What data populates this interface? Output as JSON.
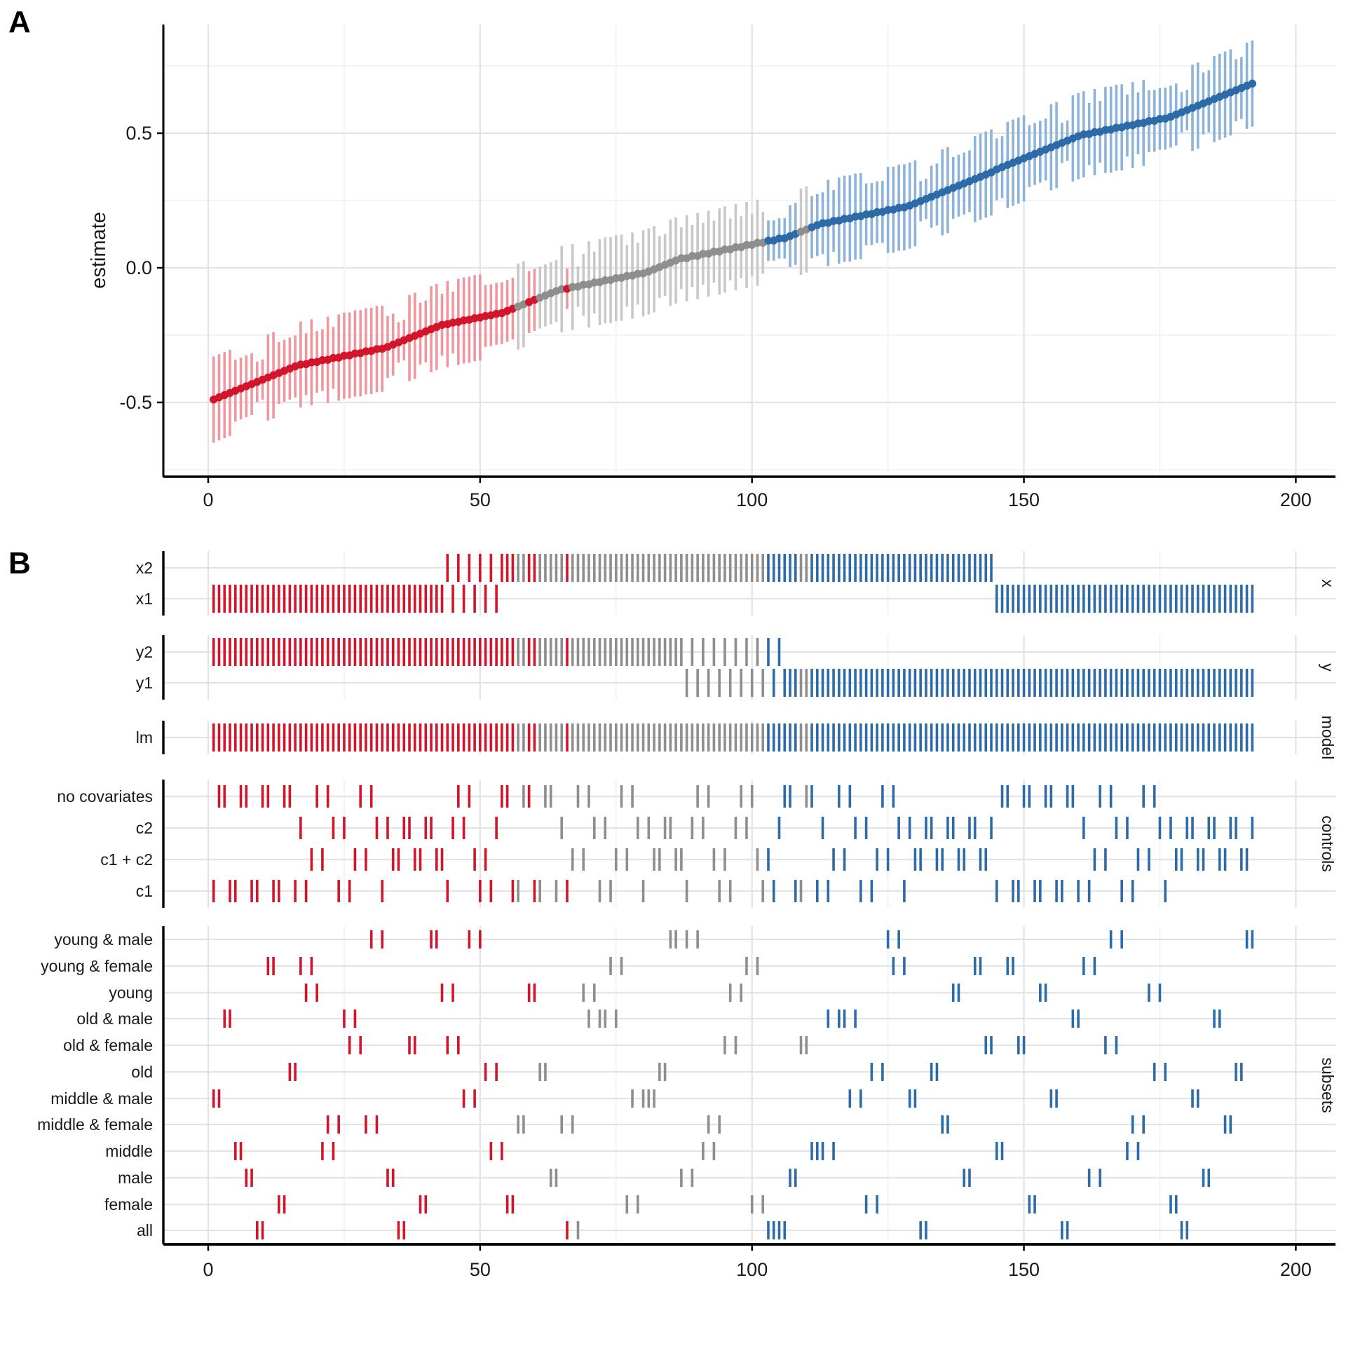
{
  "chart_data": {
    "type": "scatter",
    "subtype": "specification-curve",
    "n_specs": 192,
    "panelA": {
      "label": "A",
      "ylabel": "estimate",
      "yticks": [
        {
          "label": "0.5",
          "value": 0.5
        },
        {
          "label": "0.0",
          "value": 0.0
        },
        {
          "label": "-0.5",
          "value": -0.5
        }
      ],
      "yminor": [
        0.75,
        0.25,
        -0.25,
        -0.75
      ],
      "ylim": [
        -0.78,
        0.9
      ],
      "xticks": [
        {
          "label": "0",
          "value": 0
        },
        {
          "label": "50",
          "value": 50
        },
        {
          "label": "100",
          "value": 100
        },
        {
          "label": "150",
          "value": 150
        },
        {
          "label": "200",
          "value": 200
        }
      ],
      "xminor": [
        25,
        75,
        125,
        175
      ],
      "xlim": [
        -8,
        207
      ]
    },
    "panelB": {
      "label": "B",
      "blocks": [
        {
          "strip": "x",
          "rows": [
            "x2",
            "x1"
          ]
        },
        {
          "strip": "y",
          "rows": [
            "y2",
            "y1"
          ]
        },
        {
          "strip": "model",
          "rows": [
            "lm"
          ]
        },
        {
          "strip": "controls",
          "rows": [
            "no covariates",
            "c2",
            "c1 + c2",
            "c1"
          ]
        },
        {
          "strip": "subsets",
          "rows": [
            "young & male",
            "young & female",
            "young",
            "old & male",
            "old & female",
            "old",
            "middle & male",
            "middle & female",
            "middle",
            "male",
            "female",
            "all"
          ]
        }
      ],
      "xticks": [
        {
          "label": "0",
          "value": 0
        },
        {
          "label": "50",
          "value": 50
        },
        {
          "label": "100",
          "value": 100
        },
        {
          "label": "150",
          "value": 150
        },
        {
          "label": "200",
          "value": 200
        }
      ]
    },
    "colors": {
      "red": "#d2152b",
      "red_light": "#ef97a0",
      "gray": "#8e8e8e",
      "gray_light": "#c8c8c8",
      "blue": "#2d6ba8",
      "blue_light": "#8db3d8",
      "grid_major": "#e3e3e3",
      "grid_minor": "#f1f1f1",
      "axis": "#000000",
      "text": "#1a1a1a"
    },
    "legend_semantics": {
      "red": "significant negative estimate",
      "gray": "non-significant estimate",
      "blue": "significant positive estimate"
    },
    "ci_halfwidths": {
      "all": 0.075,
      "female": 0.115,
      "male": 0.115,
      "middle": 0.115,
      "old": 0.115,
      "young": 0.115,
      "middle & female": 0.16,
      "middle & male": 0.16,
      "old & female": 0.16,
      "old & male": 0.16,
      "young & female": 0.16,
      "young & male": 0.16
    },
    "spec_blocks": [
      {
        "x": "x1",
        "y": "y2",
        "model": "lm",
        "controls_pair": [
          "c1",
          "no covariates"
        ],
        "subset_order": [
          "middle & male",
          "old & male",
          "middle",
          "male",
          "all",
          "young & female",
          "female",
          "old",
          "young",
          "middle & female",
          "old & female",
          "young & male"
        ],
        "estimates": [
          -0.4893,
          -0.4811,
          -0.4729,
          -0.4647,
          -0.4565,
          -0.4483,
          -0.4401,
          -0.4319,
          -0.4237,
          -0.4155,
          -0.4073,
          -0.3991,
          -0.3909,
          -0.3827,
          -0.3745,
          -0.3663,
          -0.3581,
          -0.3499,
          -0.3417,
          -0.3335,
          -0.3253,
          -0.3171,
          -0.3089,
          -0.3007
        ]
      },
      {
        "x": "x1",
        "y": "y2",
        "model": "lm",
        "controls_pair": [
          "c2",
          "c1 + c2"
        ],
        "subset_order": [
          "young & female",
          "middle",
          "old & male",
          "middle & female",
          "male",
          "all",
          "old & female",
          "female",
          "young & male",
          "young",
          "middle & male",
          "old"
        ],
        "estimates": [
          -0.3593,
          -0.3511,
          -0.3429,
          -0.3347,
          -0.3265,
          -0.3183,
          -0.3101,
          -0.3019,
          -0.2937,
          -0.2855,
          -0.2773,
          -0.2691,
          -0.2609,
          -0.2527,
          -0.2445,
          -0.2363,
          -0.2281,
          -0.2199,
          -0.2117,
          -0.2035,
          -0.1953,
          -0.1871,
          -0.1789,
          -0.1707
        ]
      },
      {
        "x": "x2",
        "y": "y2",
        "model": "lm",
        "controls_pair": [
          "c1",
          "no covariates"
        ],
        "subset_order": [
          "old & female",
          "young & male",
          "middle",
          "female",
          "middle & female",
          "young",
          "old",
          "male",
          "all",
          "old & male",
          "young & female",
          "middle & male"
        ],
        "estimates": [
          -0.2093,
          -0.2011,
          -0.1929,
          -0.1847,
          -0.1765,
          -0.1683,
          -0.1601,
          -0.1519,
          -0.1437,
          -0.1355,
          -0.1273,
          -0.1191,
          -0.1109,
          -0.1027,
          -0.0945,
          -0.0863,
          -0.0781,
          -0.0699,
          -0.0617,
          -0.0535,
          -0.0453,
          -0.0371,
          -0.0289,
          -0.0207
        ]
      },
      {
        "x": "x2",
        "y": "y2",
        "model": "lm",
        "controls_pair": [
          "c2",
          "c1 + c2"
        ],
        "subset_order": [
          "middle & female",
          "young",
          "old & male",
          "female",
          "middle & male",
          "old",
          "young & male",
          "male",
          "middle",
          "old & female",
          "young & female",
          "all"
        ],
        "estimates": [
          -0.0793,
          -0.0711,
          -0.0629,
          -0.0547,
          -0.0465,
          -0.0383,
          -0.0301,
          -0.0219,
          -0.0137,
          -0.0055,
          0.0027,
          0.0109,
          0.0191,
          0.0273,
          0.0355,
          0.0437,
          0.0519,
          0.0601,
          0.0683,
          0.0765,
          0.0847,
          0.0929,
          0.1011,
          0.1093
        ]
      },
      {
        "x": "x2",
        "y": "y1",
        "model": "lm",
        "controls_pair": [
          "c1",
          "no covariates"
        ],
        "subset_order": [
          "young & male",
          "middle & female",
          "young",
          "female",
          "all",
          "male",
          "old & female",
          "middle",
          "old & male",
          "middle & male",
          "old",
          "young & female"
        ],
        "estimates": [
          0.0357,
          0.0439,
          0.0521,
          0.0603,
          0.0685,
          0.0767,
          0.0849,
          0.0931,
          0.1013,
          0.1095,
          0.1177,
          0.1259,
          0.1341,
          0.1423,
          0.1505,
          0.1587,
          0.1669,
          0.1751,
          0.1833,
          0.1915,
          0.1997,
          0.2079,
          0.2161,
          0.2243
        ]
      },
      {
        "x": "x2",
        "y": "y1",
        "model": "lm",
        "controls_pair": [
          "c2",
          "c1 + c2"
        ],
        "subset_order": [
          "middle",
          "old & male",
          "female",
          "young & male",
          "middle & male",
          "all",
          "old",
          "middle & female",
          "young",
          "male",
          "young & female",
          "old & female"
        ],
        "estimates": [
          0.1657,
          0.1739,
          0.1821,
          0.1903,
          0.1985,
          0.2067,
          0.2149,
          0.2231,
          0.2313,
          0.2395,
          0.2477,
          0.2559,
          0.2641,
          0.2723,
          0.2805,
          0.2887,
          0.2969,
          0.3051,
          0.3133,
          0.3215,
          0.3297,
          0.3379,
          0.3461,
          0.3543
        ]
      },
      {
        "x": "x1",
        "y": "y1",
        "model": "lm",
        "controls_pair": [
          "c1",
          "no covariates"
        ],
        "subset_order": [
          "middle",
          "young & female",
          "old & female",
          "female",
          "young",
          "middle & male",
          "all",
          "old & male",
          "male",
          "young & male",
          "middle & female",
          "old"
        ],
        "estimates": [
          0.3657,
          0.3739,
          0.3821,
          0.3903,
          0.3985,
          0.4067,
          0.4149,
          0.4231,
          0.4313,
          0.4395,
          0.4477,
          0.4559,
          0.4641,
          0.4723,
          0.4805,
          0.4887,
          0.4969,
          0.5051,
          0.5133,
          0.5215,
          0.5297,
          0.5379,
          0.5461,
          0.5543
        ]
      },
      {
        "x": "x1",
        "y": "y1",
        "model": "lm",
        "controls_pair": [
          "c2",
          "c1 + c2"
        ],
        "subset_order": [
          "young & female",
          "old & female",
          "middle",
          "young",
          "female",
          "all",
          "middle & male",
          "male",
          "old & male",
          "middle & female",
          "old",
          "young & male"
        ],
        "estimates": [
          0.4957,
          0.5039,
          0.5121,
          0.5203,
          0.5285,
          0.5367,
          0.5449,
          0.5531,
          0.5613,
          0.5695,
          0.5777,
          0.5859,
          0.5941,
          0.6023,
          0.6105,
          0.6187,
          0.6269,
          0.6351,
          0.6433,
          0.6515,
          0.6597,
          0.6679,
          0.6761,
          0.6843
        ]
      }
    ]
  }
}
